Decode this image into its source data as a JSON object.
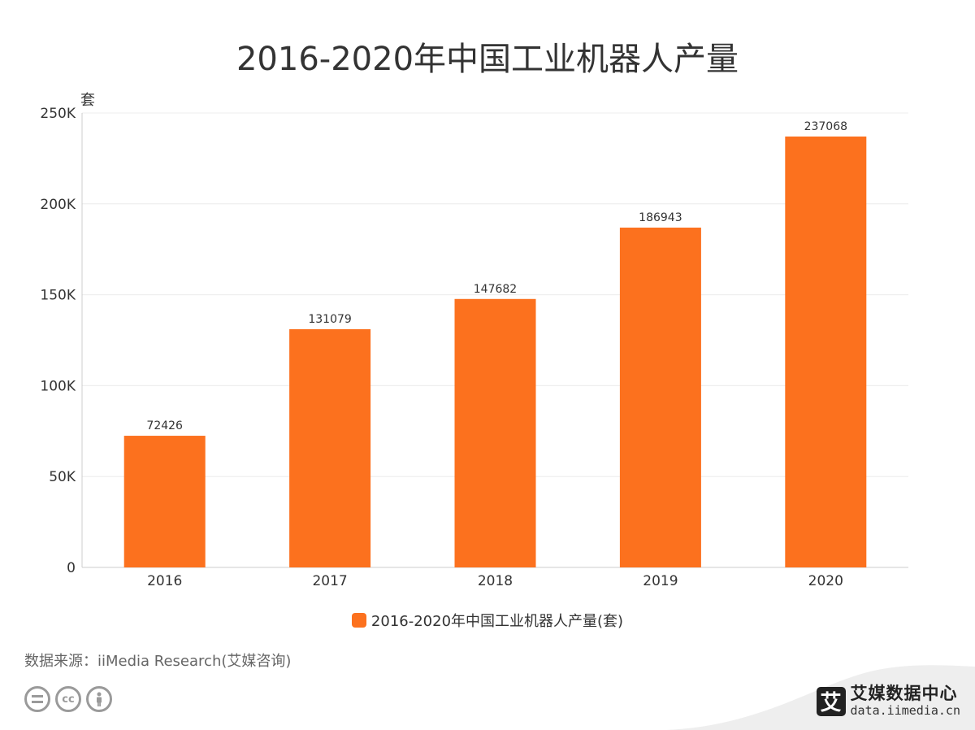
{
  "title": "2016-2020年中国工业机器人产量",
  "chart_data": {
    "type": "bar",
    "title": "2016-2020年中国工业机器人产量",
    "categories": [
      "2016",
      "2017",
      "2018",
      "2019",
      "2020"
    ],
    "series": [
      {
        "name": "2016-2020年中国工业机器人产量(套)",
        "values": [
          72426,
          131079,
          147682,
          186943,
          237068
        ],
        "labels": [
          "72426",
          "131079",
          "147682",
          "186943",
          "237068"
        ]
      }
    ],
    "xlabel": "",
    "ylabel": "套",
    "ylim": [
      0,
      250000
    ],
    "yticks": [
      0,
      50000,
      100000,
      150000,
      200000,
      250000
    ],
    "ytick_labels": [
      "0",
      "50K",
      "100K",
      "150K",
      "200K",
      "250K"
    ],
    "grid": true,
    "legend_position": "bottom-center",
    "color": "#fc711e"
  },
  "source": "数据来源：iiMedia Research(艾媒咨询)",
  "icons": [
    "equals-icon",
    "cc-icon",
    "person-icon"
  ],
  "brand": {
    "logo_char": "艾",
    "name": "艾媒数据中心",
    "url": "data.iimedia.cn"
  }
}
